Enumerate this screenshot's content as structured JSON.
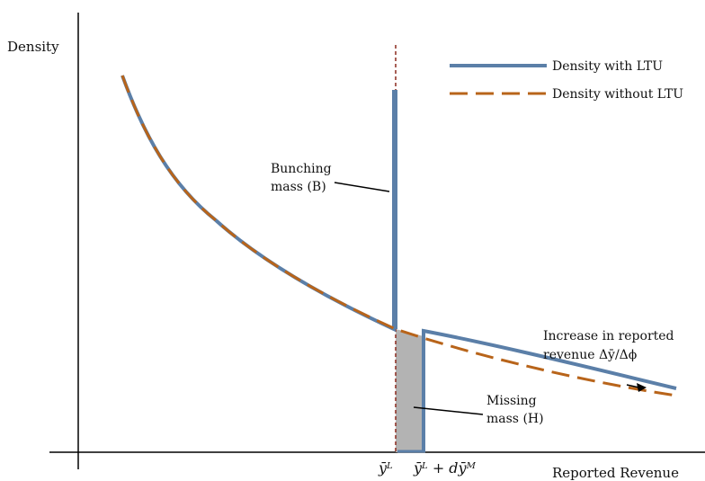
{
  "axes": {
    "y_label": "Density",
    "x_label": "Reported Revenue"
  },
  "legend": {
    "with_ltu": "Density with LTU",
    "without_ltu": "Density without LTU"
  },
  "annotations": {
    "bunching_line1": "Bunching",
    "bunching_line2": "mass (B)",
    "missing_line1": "Missing",
    "missing_line2": "mass (H)",
    "increase_line1": "Increase in reported",
    "increase_line2": "revenue Δȳ/Δϕ"
  },
  "ticks": {
    "threshold": "ȳᴸ",
    "threshold_plus": "ȳᴸ + dȳᴹ"
  },
  "colors": {
    "with_ltu": "#5b7fa8",
    "without_ltu": "#b8641a",
    "threshold_line": "#8b2a1e",
    "missing_fill": "#b3b3b3"
  }
}
